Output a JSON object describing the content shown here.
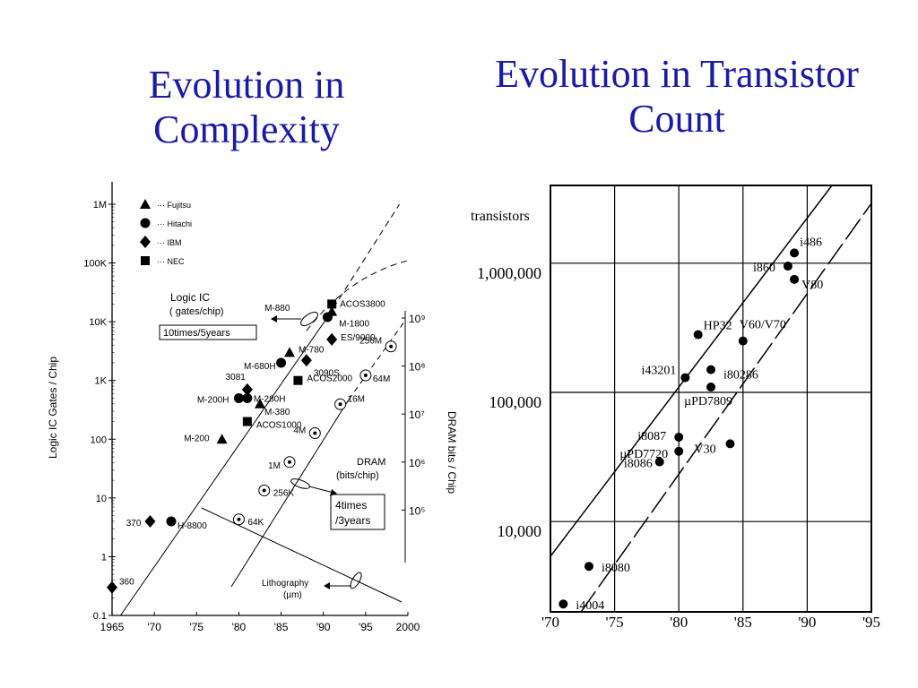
{
  "slide": {
    "title_left": "Evolution in Complexity",
    "title_right": "Evolution in Transistor Count"
  },
  "chart_data": [
    {
      "type": "scatter",
      "xlabel": "",
      "ylabel": "Logic IC Gates / Chip",
      "y2label": "DRAM bits / Chip",
      "scale": "log",
      "x_ticks": [
        "1965",
        "'70",
        "'75",
        "'80",
        "'85",
        "'90",
        "'95",
        "2000"
      ],
      "y_ticks": [
        "1M",
        "100K",
        "10K",
        "1K",
        "100",
        "10",
        "1",
        "0.1"
      ],
      "y2_ticks": [
        "10⁹",
        "10⁸",
        "10⁷",
        "10⁶",
        "10⁵"
      ],
      "xlim": [
        1965,
        2000
      ],
      "ylim": [
        0.1,
        1000000
      ],
      "y2lim": [
        10000,
        1000000000
      ],
      "legend": {
        "placement": "top-left",
        "entries": [
          {
            "marker": "triangle",
            "label": "Fujitsu"
          },
          {
            "marker": "circle",
            "label": "Hitachi"
          },
          {
            "marker": "diamond",
            "label": "IBM"
          },
          {
            "marker": "square",
            "label": "NEC"
          }
        ]
      },
      "annotations": {
        "logic_title": "Logic IC",
        "logic_unit": "( gates/chip)",
        "logic_rate": "10times/5years",
        "dram_title": "DRAM",
        "dram_unit": "(bits/chip)",
        "dram_rate_1": "4times",
        "dram_rate_2": "/3years",
        "litho_title": "Lithography",
        "litho_unit": "(µm)"
      },
      "series": [
        {
          "name": "Fujitsu",
          "marker": "triangle",
          "points": [
            {
              "label": "M-200",
              "x": 1978,
              "y": 100
            },
            {
              "label": "M-380",
              "x": 1982.5,
              "y": 400
            },
            {
              "label": "M-780",
              "x": 1986,
              "y": 3000
            },
            {
              "label": "M-1800",
              "x": 1991,
              "y": 15000
            }
          ]
        },
        {
          "name": "Hitachi",
          "marker": "circle",
          "points": [
            {
              "label": "H-8800",
              "x": 1972,
              "y": 4
            },
            {
              "label": "M-200H",
              "x": 1980,
              "y": 500
            },
            {
              "label": "M-280H",
              "x": 1981,
              "y": 500
            },
            {
              "label": "M-680H",
              "x": 1985,
              "y": 2000
            },
            {
              "label": "M-880",
              "x": 1990.5,
              "y": 12000
            }
          ]
        },
        {
          "name": "IBM",
          "marker": "diamond",
          "points": [
            {
              "label": "360",
              "x": 1965,
              "y": 0.3
            },
            {
              "label": "370",
              "x": 1969.5,
              "y": 4
            },
            {
              "label": "3081",
              "x": 1981,
              "y": 700
            },
            {
              "label": "3090S",
              "x": 1988,
              "y": 2200
            },
            {
              "label": "ES/9000",
              "x": 1991,
              "y": 5000
            }
          ]
        },
        {
          "name": "NEC",
          "marker": "square",
          "points": [
            {
              "label": "ACOS1000",
              "x": 1981,
              "y": 200
            },
            {
              "label": "ACOS2000",
              "x": 1987,
              "y": 1000
            },
            {
              "label": "ACOS3800",
              "x": 1991,
              "y": 20000
            }
          ]
        },
        {
          "name": "DRAM",
          "marker": "ring",
          "axis": "y2",
          "points": [
            {
              "label": "64K",
              "x": 1980,
              "y": 64000
            },
            {
              "label": "256K",
              "x": 1983,
              "y": 256000
            },
            {
              "label": "1M",
              "x": 1986,
              "y": 1000000
            },
            {
              "label": "4M",
              "x": 1989,
              "y": 4000000
            },
            {
              "label": "16M",
              "x": 1992,
              "y": 16000000
            },
            {
              "label": "64M",
              "x": 1995,
              "y": 64000000
            },
            {
              "label": "256M",
              "x": 1998,
              "y": 256000000
            }
          ]
        }
      ]
    },
    {
      "type": "scatter",
      "ylabel": "transistors",
      "scale": "log",
      "x_ticks": [
        "'70",
        "'75",
        "'80",
        "'85",
        "'90",
        "'95"
      ],
      "y_ticks": [
        "1,000,000",
        "100,000",
        "10,000"
      ],
      "xlim": [
        1970,
        1995
      ],
      "ylim": [
        2000,
        4000000
      ],
      "grid": true,
      "points": [
        {
          "label": "i4004",
          "x": 1971,
          "y": 2300
        },
        {
          "label": "i8080",
          "x": 1973,
          "y": 4500
        },
        {
          "label": "i8086",
          "x": 1978.5,
          "y": 29000
        },
        {
          "label": "i8087",
          "x": 1980,
          "y": 45000
        },
        {
          "label": "µPD7720",
          "x": 1980,
          "y": 35000
        },
        {
          "label": "i43201",
          "x": 1980.5,
          "y": 130000
        },
        {
          "label": "HP32",
          "x": 1981.5,
          "y": 280000
        },
        {
          "label": "i80286",
          "x": 1982.5,
          "y": 150000
        },
        {
          "label": "µPD7809",
          "x": 1982.5,
          "y": 110000
        },
        {
          "label": "V30",
          "x": 1984,
          "y": 40000
        },
        {
          "label": "V60/V70",
          "x": 1985,
          "y": 250000
        },
        {
          "label": "i860",
          "x": 1988.5,
          "y": 950000
        },
        {
          "label": "i486",
          "x": 1989,
          "y": 1200000
        },
        {
          "label": "V80",
          "x": 1989,
          "y": 750000
        }
      ]
    }
  ]
}
